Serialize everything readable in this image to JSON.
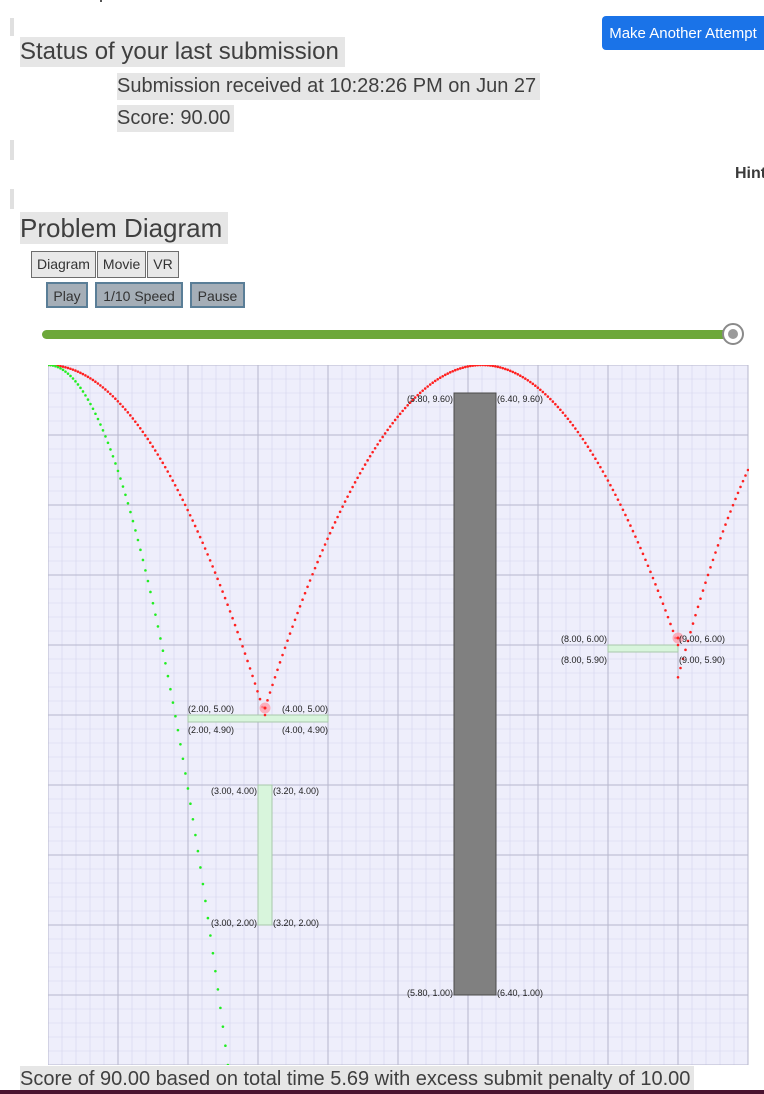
{
  "header": {
    "status_heading": "Status of your last submission",
    "submission_time": "Submission received at 10:28:26 PM on Jun 27",
    "score": "Score: 90.00",
    "attempt_button": "Make Another Attempt",
    "hint": "Hint"
  },
  "diagram_section": {
    "heading": "Problem Diagram",
    "tabs": [
      "Diagram",
      "Movie",
      "VR"
    ],
    "controls": {
      "play": "Play",
      "slow": "1/10 Speed",
      "pause": "Pause"
    },
    "slider_fraction": 1.0
  },
  "chart_data": {
    "type": "scatter",
    "xlim": [
      0,
      10
    ],
    "ylim": [
      0,
      10
    ],
    "grid": true,
    "blocks": [
      {
        "fill": "#808080",
        "x": [
          5.8,
          6.4
        ],
        "y": [
          1.0,
          9.6
        ],
        "labels": [
          "(5.80, 9.60)",
          "(6.40, 9.60)",
          "(5.80, 1.00)",
          "(6.40, 1.00)"
        ]
      },
      {
        "fill": "#d8f5dc",
        "x": [
          2.0,
          4.0
        ],
        "y": [
          4.9,
          5.0
        ],
        "labels": [
          "(2.00, 5.00)",
          "(4.00, 5.00)",
          "(2.00, 4.90)",
          "(4.00, 4.90)"
        ]
      },
      {
        "fill": "#d8f5dc",
        "x": [
          3.0,
          3.2
        ],
        "y": [
          2.0,
          4.0
        ],
        "labels": [
          "(3.00, 4.00)",
          "(3.20, 4.00)",
          "(3.00, 2.00)",
          "(3.20, 2.00)"
        ]
      },
      {
        "fill": "#d8f5dc",
        "x": [
          8.0,
          9.0
        ],
        "y": [
          5.9,
          6.0
        ],
        "labels": [
          "(8.00, 6.00)",
          "(9.00, 6.00)",
          "(8.00, 5.90)",
          "(9.00, 5.90)"
        ]
      }
    ],
    "series": [
      {
        "color": "#ff2020",
        "segments": [
          {
            "x0": 0.0,
            "x1": 3.1,
            "apex_x": 0.0,
            "apex_y": 10.0,
            "end_y": 5.0
          },
          {
            "x0": 3.1,
            "x1": 9.0,
            "apex_x": 6.2,
            "apex_y": 10.0,
            "end_y": 6.0
          },
          {
            "x0": 9.0,
            "x1": 10.0,
            "apex_x": 11.38,
            "apex_y": 10.0,
            "end_y": 8.5
          }
        ]
      },
      {
        "color": "#22ee22",
        "segments": [
          {
            "x0": 0.0,
            "x1": 2.57,
            "apex_x": 0.0,
            "apex_y": 10.0,
            "end_y": 0.0
          }
        ]
      }
    ],
    "impacts": [
      [
        3.1,
        5.1
      ],
      [
        9.0,
        6.1
      ]
    ]
  },
  "footer": {
    "summary": "Score of 90.00 based on total time 5.69 with excess submit penalty of 10.00"
  }
}
